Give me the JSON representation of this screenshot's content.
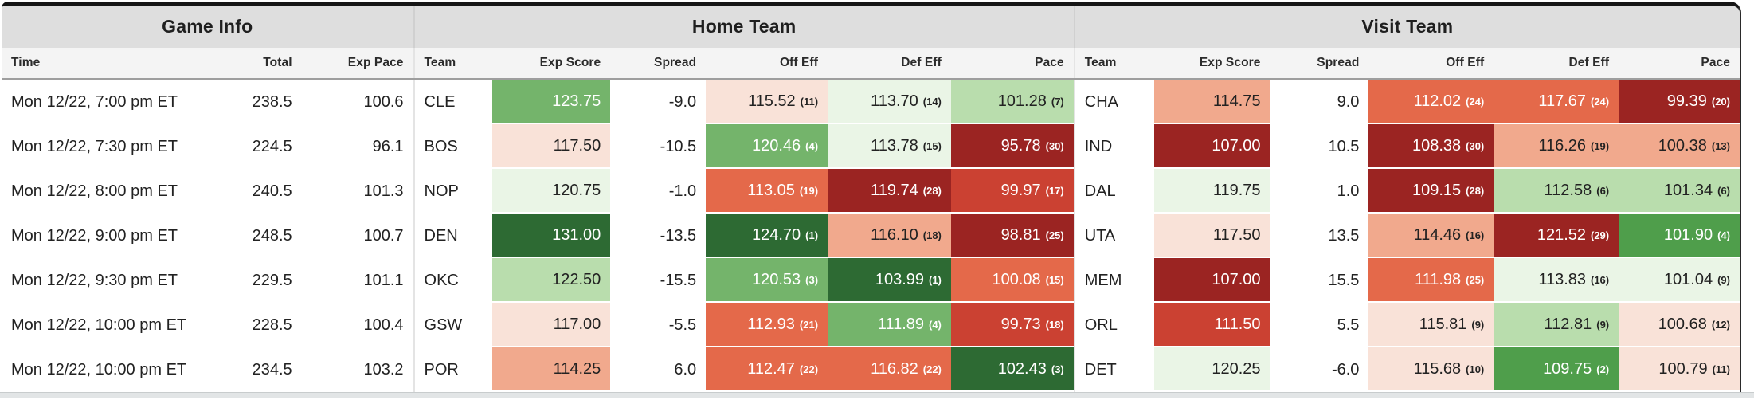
{
  "sections": {
    "game_info": "Game Info",
    "home_team": "Home Team",
    "visit_team": "Visit Team"
  },
  "columns": {
    "time": "Time",
    "total": "Total",
    "exp_pace": "Exp Pace",
    "team": "Team",
    "exp_score": "Exp Score",
    "spread": "Spread",
    "off_eff": "Off Eff",
    "def_eff": "Def Eff",
    "pace": "Pace"
  },
  "palette": {
    "g1": "#2d6a33",
    "g2": "#4f9e4b",
    "g3": "#74b46b",
    "g4": "#b9ddad",
    "g5": "#eaf5e6",
    "r5": "#f9e2d8",
    "r4": "#f1a98d",
    "r3": "#e4694a",
    "r2": "#cb4132",
    "r1": "#9b2422"
  },
  "rows": [
    {
      "time": "Mon 12/22, 7:00 pm ET",
      "total": "238.5",
      "exp_pace": "100.6",
      "home": {
        "team": "CLE",
        "exp_score": {
          "v": "123.75",
          "c": "g3"
        },
        "spread": "-9.0",
        "off_eff": {
          "v": "115.52",
          "rank": "(11)",
          "c": "r5"
        },
        "def_eff": {
          "v": "113.70",
          "rank": "(14)",
          "c": "g5"
        },
        "pace": {
          "v": "101.28",
          "rank": "(7)",
          "c": "g4"
        }
      },
      "visit": {
        "team": "CHA",
        "exp_score": {
          "v": "114.75",
          "c": "r4"
        },
        "spread": "9.0",
        "off_eff": {
          "v": "112.02",
          "rank": "(24)",
          "c": "r3"
        },
        "def_eff": {
          "v": "117.67",
          "rank": "(24)",
          "c": "r3"
        },
        "pace": {
          "v": "99.39",
          "rank": "(20)",
          "c": "r1"
        }
      }
    },
    {
      "time": "Mon 12/22, 7:30 pm ET",
      "total": "224.5",
      "exp_pace": "96.1",
      "home": {
        "team": "BOS",
        "exp_score": {
          "v": "117.50",
          "c": "r5"
        },
        "spread": "-10.5",
        "off_eff": {
          "v": "120.46",
          "rank": "(4)",
          "c": "g3"
        },
        "def_eff": {
          "v": "113.78",
          "rank": "(15)",
          "c": "g5"
        },
        "pace": {
          "v": "95.78",
          "rank": "(30)",
          "c": "r1"
        }
      },
      "visit": {
        "team": "IND",
        "exp_score": {
          "v": "107.00",
          "c": "r1"
        },
        "spread": "10.5",
        "off_eff": {
          "v": "108.38",
          "rank": "(30)",
          "c": "r1"
        },
        "def_eff": {
          "v": "116.26",
          "rank": "(19)",
          "c": "r4"
        },
        "pace": {
          "v": "100.38",
          "rank": "(13)",
          "c": "r4"
        }
      }
    },
    {
      "time": "Mon 12/22, 8:00 pm ET",
      "total": "240.5",
      "exp_pace": "101.3",
      "home": {
        "team": "NOP",
        "exp_score": {
          "v": "120.75",
          "c": "g5"
        },
        "spread": "-1.0",
        "off_eff": {
          "v": "113.05",
          "rank": "(19)",
          "c": "r3"
        },
        "def_eff": {
          "v": "119.74",
          "rank": "(28)",
          "c": "r1"
        },
        "pace": {
          "v": "99.97",
          "rank": "(17)",
          "c": "r2"
        }
      },
      "visit": {
        "team": "DAL",
        "exp_score": {
          "v": "119.75",
          "c": "g5"
        },
        "spread": "1.0",
        "off_eff": {
          "v": "109.15",
          "rank": "(28)",
          "c": "r1"
        },
        "def_eff": {
          "v": "112.58",
          "rank": "(6)",
          "c": "g4"
        },
        "pace": {
          "v": "101.34",
          "rank": "(6)",
          "c": "g4"
        }
      }
    },
    {
      "time": "Mon 12/22, 9:00 pm ET",
      "total": "248.5",
      "exp_pace": "100.7",
      "home": {
        "team": "DEN",
        "exp_score": {
          "v": "131.00",
          "c": "g1"
        },
        "spread": "-13.5",
        "off_eff": {
          "v": "124.70",
          "rank": "(1)",
          "c": "g1"
        },
        "def_eff": {
          "v": "116.10",
          "rank": "(18)",
          "c": "r4"
        },
        "pace": {
          "v": "98.81",
          "rank": "(25)",
          "c": "r1"
        }
      },
      "visit": {
        "team": "UTA",
        "exp_score": {
          "v": "117.50",
          "c": "r5"
        },
        "spread": "13.5",
        "off_eff": {
          "v": "114.46",
          "rank": "(16)",
          "c": "r4"
        },
        "def_eff": {
          "v": "121.52",
          "rank": "(29)",
          "c": "r1"
        },
        "pace": {
          "v": "101.90",
          "rank": "(4)",
          "c": "g2"
        }
      }
    },
    {
      "time": "Mon 12/22, 9:30 pm ET",
      "total": "229.5",
      "exp_pace": "101.1",
      "home": {
        "team": "OKC",
        "exp_score": {
          "v": "122.50",
          "c": "g4"
        },
        "spread": "-15.5",
        "off_eff": {
          "v": "120.53",
          "rank": "(3)",
          "c": "g3"
        },
        "def_eff": {
          "v": "103.99",
          "rank": "(1)",
          "c": "g1"
        },
        "pace": {
          "v": "100.08",
          "rank": "(15)",
          "c": "r3"
        }
      },
      "visit": {
        "team": "MEM",
        "exp_score": {
          "v": "107.00",
          "c": "r1"
        },
        "spread": "15.5",
        "off_eff": {
          "v": "111.98",
          "rank": "(25)",
          "c": "r3"
        },
        "def_eff": {
          "v": "113.83",
          "rank": "(16)",
          "c": "g5"
        },
        "pace": {
          "v": "101.04",
          "rank": "(9)",
          "c": "g5"
        }
      }
    },
    {
      "time": "Mon 12/22, 10:00 pm ET",
      "total": "228.5",
      "exp_pace": "100.4",
      "home": {
        "team": "GSW",
        "exp_score": {
          "v": "117.00",
          "c": "r5"
        },
        "spread": "-5.5",
        "off_eff": {
          "v": "112.93",
          "rank": "(21)",
          "c": "r3"
        },
        "def_eff": {
          "v": "111.89",
          "rank": "(4)",
          "c": "g3"
        },
        "pace": {
          "v": "99.73",
          "rank": "(18)",
          "c": "r2"
        }
      },
      "visit": {
        "team": "ORL",
        "exp_score": {
          "v": "111.50",
          "c": "r2"
        },
        "spread": "5.5",
        "off_eff": {
          "v": "115.81",
          "rank": "(9)",
          "c": "r5"
        },
        "def_eff": {
          "v": "112.81",
          "rank": "(9)",
          "c": "g4"
        },
        "pace": {
          "v": "100.68",
          "rank": "(12)",
          "c": "r5"
        }
      }
    },
    {
      "time": "Mon 12/22, 10:00 pm ET",
      "total": "234.5",
      "exp_pace": "103.2",
      "home": {
        "team": "POR",
        "exp_score": {
          "v": "114.25",
          "c": "r4"
        },
        "spread": "6.0",
        "off_eff": {
          "v": "112.47",
          "rank": "(22)",
          "c": "r3"
        },
        "def_eff": {
          "v": "116.82",
          "rank": "(22)",
          "c": "r3"
        },
        "pace": {
          "v": "102.43",
          "rank": "(3)",
          "c": "g1"
        }
      },
      "visit": {
        "team": "DET",
        "exp_score": {
          "v": "120.25",
          "c": "g5"
        },
        "spread": "-6.0",
        "off_eff": {
          "v": "115.68",
          "rank": "(10)",
          "c": "r5"
        },
        "def_eff": {
          "v": "109.75",
          "rank": "(2)",
          "c": "g2"
        },
        "pace": {
          "v": "100.79",
          "rank": "(11)",
          "c": "r5"
        }
      }
    }
  ]
}
